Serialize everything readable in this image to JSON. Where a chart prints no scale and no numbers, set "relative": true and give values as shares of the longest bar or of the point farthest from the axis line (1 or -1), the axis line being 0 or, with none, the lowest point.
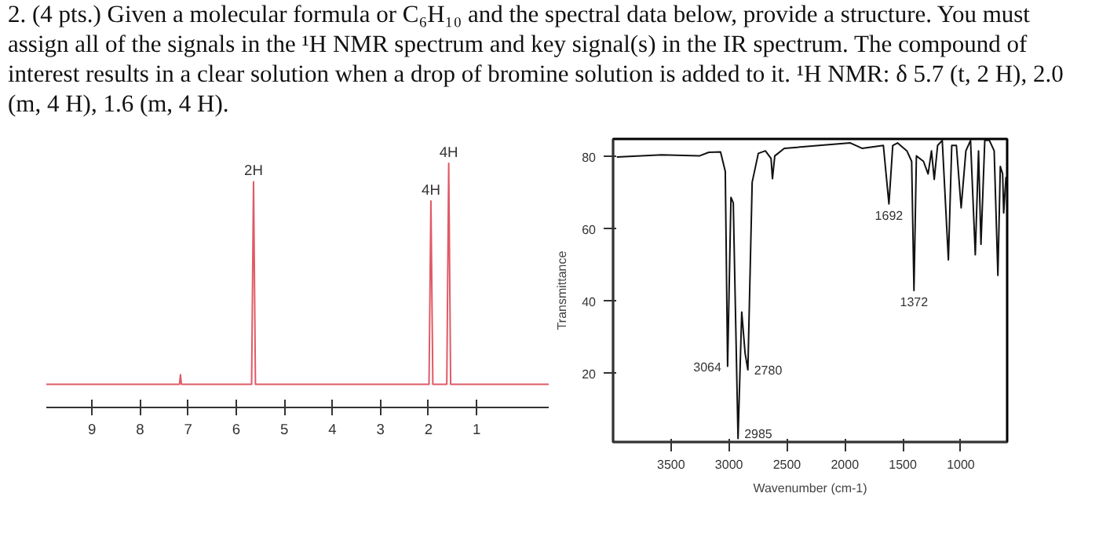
{
  "chart_data": [
    {
      "type": "line",
      "title": "2. (4 pts.) Given a molecular formula or C₆H₁₀ and the spectral data below, provide a structure. You must assign all of the signals in the ¹H NMR spectrum and key signal(s) in the IR spectrum. The compound of interest results in a clear solution when a drop of bromine solution is added to it. ¹H NMR: δ 5.7 (t, 2 H), 2.0 (m, 4 H), 1.6 (m, 4 H).",
      "relative": true,
      "tick_labels": "x",
      "grid": false,
      "xlim": [
        9.95,
        -0.5
      ],
      "xticks": [
        9,
        8,
        7,
        6,
        5,
        4,
        3,
        2,
        1
      ],
      "series": [
        {
          "color": "#e05a66",
          "x": [
            9.95,
            7.18,
            7.16,
            7.14,
            5.68,
            5.64,
            5.6,
            1.99,
            1.95,
            1.91,
            1.62,
            1.58,
            1.54,
            -0.5
          ],
          "values": [
            0.095,
            0.095,
            0.134,
            0.095,
            0.095,
            0.925,
            0.095,
            0.095,
            0.846,
            0.095,
            0.095,
            1.0,
            0.095,
            0.095
          ]
        }
      ],
      "annotations": [
        {
          "text": "2H",
          "x": 5.64,
          "y": 0.925
        },
        {
          "text": "4H",
          "x": 1.95,
          "y": 0.846
        },
        {
          "text": "4H",
          "x": 1.58,
          "y": 1.0
        }
      ]
    },
    {
      "type": "line",
      "xlabel": "Wavenumber (cm-1)",
      "ylabel": "Transmittance",
      "grid": false,
      "xlim": [
        4000,
        600
      ],
      "ylim": [
        1,
        85
      ],
      "xticks": [
        3500,
        3000,
        2500,
        2000,
        1500,
        1000
      ],
      "yticks": [
        20,
        40,
        60,
        80
      ],
      "series": [
        {
          "color": "#111111",
          "x": [
            3968,
            3581,
            3256,
            3174,
            3073,
            3032,
            3012,
            2983,
            2963,
            2922,
            2890,
            2861,
            2837,
            2800,
            2747,
            2686,
            2637,
            2625,
            2605,
            2523,
            1953,
            1852,
            1668,
            1620,
            1587,
            1546,
            1465,
            1424,
            1404,
            1383,
            1322,
            1282,
            1253,
            1229,
            1200,
            1160,
            1107,
            1078,
            1038,
            997,
            956,
            916,
            875,
            847,
            826,
            793,
            753,
            712,
            680,
            659,
            639,
            630,
            610
          ],
          "values": [
            80,
            80.6,
            80.3,
            81.3,
            81.4,
            76,
            22,
            68.8,
            67.3,
            2,
            37,
            25.6,
            21,
            73,
            81,
            81.7,
            79.6,
            74,
            80.3,
            82.4,
            83.9,
            82.4,
            83.2,
            67,
            83.2,
            83.9,
            81.7,
            78.8,
            43,
            80.3,
            78.8,
            75.3,
            81.7,
            73.8,
            83.2,
            84.6,
            51.5,
            83.2,
            83.2,
            65.9,
            81.7,
            84.6,
            52.9,
            81.7,
            55.8,
            84.6,
            84.6,
            81.7,
            47.2,
            77.4,
            75.3,
            64.5,
            74.5
          ]
        }
      ],
      "annotations": [
        {
          "text": "3064",
          "x": 3012,
          "y": 22
        },
        {
          "text": "2985",
          "x": 2922,
          "y": 2
        },
        {
          "text": "2780",
          "x": 2837,
          "y": 21
        },
        {
          "text": "1692",
          "x": 1620,
          "y": 67
        },
        {
          "text": "1372",
          "x": 1404,
          "y": 43
        }
      ]
    }
  ]
}
